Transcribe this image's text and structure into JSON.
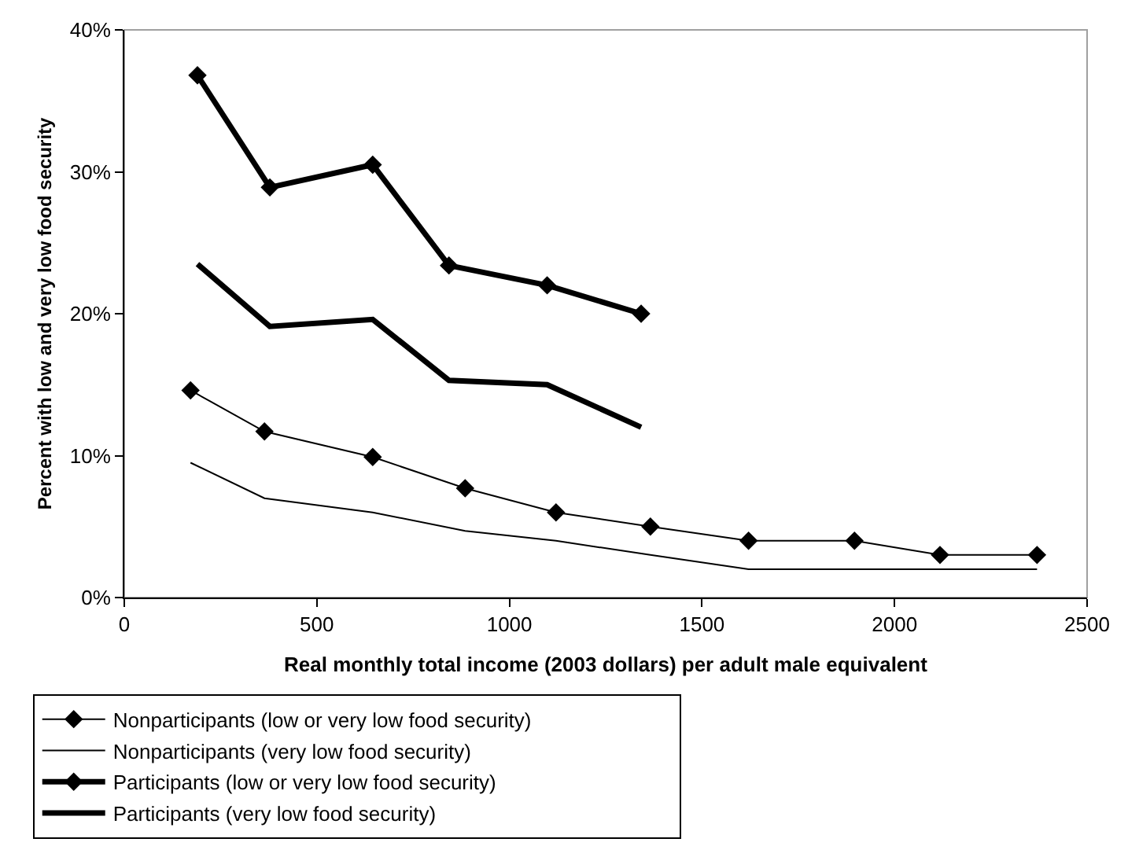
{
  "chart_data": {
    "type": "line",
    "xlabel": "Real monthly total income (2003 dollars) per adult male equivalent",
    "ylabel": "Percent with low and very low food security",
    "xlim": [
      0,
      2500
    ],
    "xticks": [
      0,
      500,
      1000,
      1500,
      2000,
      2500
    ],
    "ylim": [
      0,
      40
    ],
    "yticks": [
      {
        "value": 0,
        "label": "0%"
      },
      {
        "value": 10,
        "label": "10%"
      },
      {
        "value": 20,
        "label": "20%"
      },
      {
        "value": 30,
        "label": "30%"
      },
      {
        "value": 40,
        "label": "40%"
      }
    ],
    "grid": false,
    "legend": "bottom",
    "line_style": "solid",
    "series": [
      {
        "name": "Nonparticipants (low or very low food security)",
        "color": "#000000",
        "marker": "diamond",
        "x": [
          172,
          364,
          645,
          885,
          1121,
          1366,
          1621,
          1896,
          2118,
          2370
        ],
        "values": [
          14.6,
          11.7,
          9.9,
          7.7,
          6.0,
          5.0,
          4.0,
          4.0,
          3.0,
          3.0
        ]
      },
      {
        "name": "Nonparticipants (very low food security)",
        "color": "#000000",
        "marker": "none",
        "x": [
          172,
          364,
          645,
          885,
          1121,
          1366,
          1621,
          1896,
          2118,
          2370
        ],
        "values": [
          9.5,
          7.0,
          6.0,
          4.7,
          4.0,
          3.0,
          2.0,
          2.0,
          2.0,
          2.0
        ]
      },
      {
        "name": "Participants (low or very low food security)",
        "color": "#000000",
        "marker": "diamond",
        "x": [
          190,
          378,
          645,
          843,
          1098,
          1342
        ],
        "values": [
          36.8,
          28.9,
          30.5,
          23.4,
          22.0,
          20.0
        ]
      },
      {
        "name": "Participants (very low food security)",
        "color": "#000000",
        "marker": "none",
        "x": [
          190,
          378,
          645,
          843,
          1098,
          1342
        ],
        "values": [
          23.5,
          19.1,
          19.6,
          15.3,
          15.0,
          12.0
        ]
      }
    ]
  }
}
